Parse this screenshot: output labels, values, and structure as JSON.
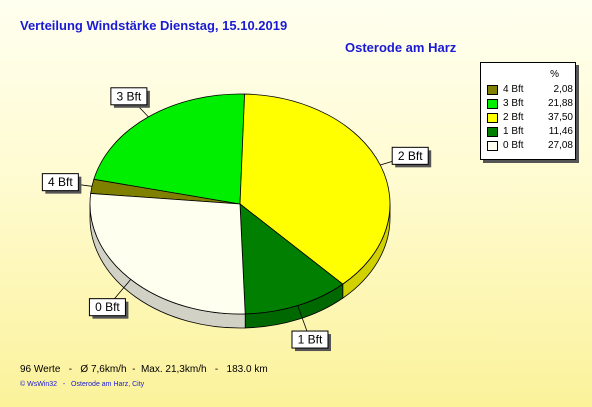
{
  "header": {
    "title": "Verteilung Windstärke  Dienstag, 15.10.2019",
    "station": "Osterode am Harz"
  },
  "chart_data": {
    "type": "pie",
    "title": "Verteilung Windstärke  Dienstag, 15.10.2019",
    "subtitle": "Osterode am Harz",
    "unit": "%",
    "legend_position": "top-right",
    "slices": [
      {
        "label": "4 Bft",
        "value": 2.08,
        "value_text": "2,08",
        "color": "#7f7f00"
      },
      {
        "label": "3 Bft",
        "value": 21.88,
        "value_text": "21,88",
        "color": "#00ee00"
      },
      {
        "label": "2 Bft",
        "value": 37.5,
        "value_text": "37,50",
        "color": "#ffff00"
      },
      {
        "label": "1 Bft",
        "value": 11.46,
        "value_text": "11,46",
        "color": "#007f00"
      },
      {
        "label": "0 Bft",
        "value": 27.08,
        "value_text": "27,08",
        "color": "#fffff0"
      }
    ]
  },
  "footer": {
    "stats": "96 Werte   -   Ø 7,6km/h  -  Max. 21,3km/h   -   183.0 km",
    "credit": "© WsWin32   -   Osterode am Harz, City"
  }
}
